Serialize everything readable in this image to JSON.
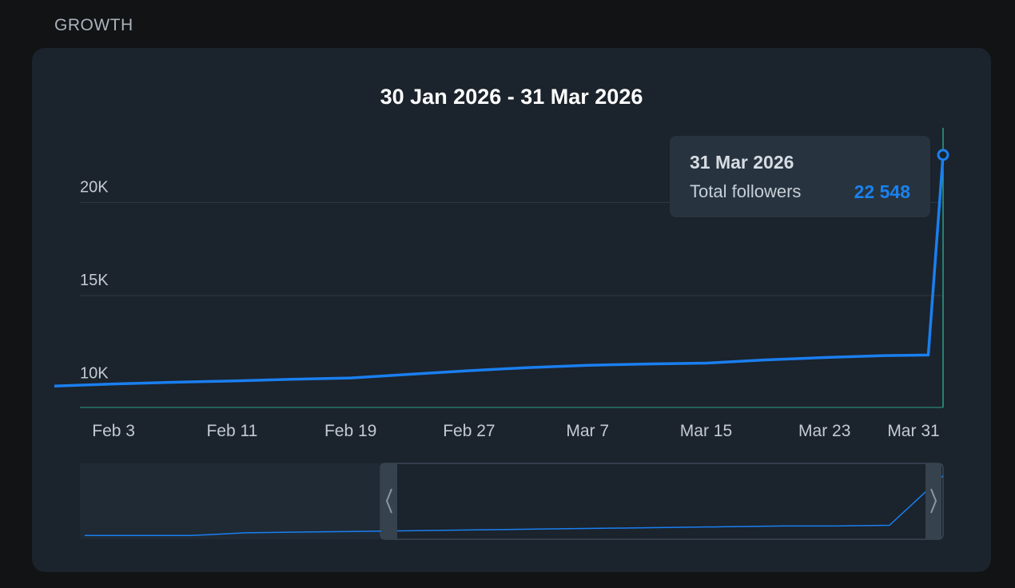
{
  "section": {
    "title": "GROWTH"
  },
  "chart_data": {
    "type": "line",
    "title": "30 Jan 2026 - 31 Mar 2026",
    "xlabel": "",
    "ylabel": "",
    "x_tick_labels": [
      "Feb 3",
      "Feb 11",
      "Feb 19",
      "Feb 27",
      "Mar 7",
      "Mar 15",
      "Mar 23",
      "Mar 31"
    ],
    "y_tick_labels": [
      "10K",
      "15K",
      "20K"
    ],
    "ylim": [
      9000,
      24000
    ],
    "grid": true,
    "series": [
      {
        "color": "#1a7ff0",
        "points": [
          [
            "2026-01-30",
            10150
          ],
          [
            "2026-02-03",
            10260
          ],
          [
            "2026-02-07",
            10350
          ],
          [
            "2026-02-11",
            10420
          ],
          [
            "2026-02-15",
            10510
          ],
          [
            "2026-02-19",
            10580
          ],
          [
            "2026-02-23",
            10780
          ],
          [
            "2026-02-27",
            10970
          ],
          [
            "2026-03-03",
            11140
          ],
          [
            "2026-03-07",
            11260
          ],
          [
            "2026-03-11",
            11330
          ],
          [
            "2026-03-15",
            11380
          ],
          [
            "2026-03-19",
            11550
          ],
          [
            "2026-03-23",
            11680
          ],
          [
            "2026-03-27",
            11780
          ],
          [
            "2026-03-30",
            11810
          ],
          [
            "2026-03-31",
            22548
          ]
        ]
      }
    ],
    "tooltip": {
      "date": "31 Mar 2026",
      "label": "Total followers",
      "value": "22 548"
    },
    "navigator": {
      "series": [
        0.02,
        0.02,
        0.02,
        0.06,
        0.07,
        0.08,
        0.09,
        0.1,
        0.11,
        0.12,
        0.13,
        0.14,
        0.15,
        0.16,
        0.16,
        0.17,
        0.9
      ]
    },
    "colors": {
      "line": "#1a7ff0",
      "crosshair": "#2e9e87",
      "grid": "#2c3a43"
    }
  }
}
